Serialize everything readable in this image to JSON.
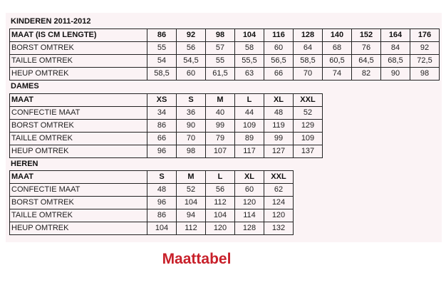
{
  "sections": [
    {
      "title": "KINDEREN 2011-2012",
      "header": [
        "MAAT (IS CM LENGTE)",
        "86",
        "92",
        "98",
        "104",
        "116",
        "128",
        "140",
        "152",
        "164",
        "176"
      ],
      "rows": [
        [
          "BORST OMTREK",
          "55",
          "56",
          "57",
          "58",
          "60",
          "64",
          "68",
          "76",
          "84",
          "92"
        ],
        [
          "TAILLE OMTREK",
          "54",
          "54,5",
          "55",
          "55,5",
          "56,5",
          "58,5",
          "60,5",
          "64,5",
          "68,5",
          "72,5"
        ],
        [
          "HEUP OMTREK",
          "58,5",
          "60",
          "61,5",
          "63",
          "66",
          "70",
          "74",
          "82",
          "90",
          "98"
        ]
      ]
    },
    {
      "title": "DAMES",
      "header": [
        "MAAT",
        "XS",
        "S",
        "M",
        "L",
        "XL",
        "XXL"
      ],
      "rows": [
        [
          "CONFECTIE MAAT",
          "34",
          "36",
          "40",
          "44",
          "48",
          "52"
        ],
        [
          "BORST OMTREK",
          "86",
          "90",
          "99",
          "109",
          "119",
          "129"
        ],
        [
          "TAILLE OMTREK",
          "66",
          "70",
          "79",
          "89",
          "99",
          "109"
        ],
        [
          "HEUP OMTREK",
          "96",
          "98",
          "107",
          "117",
          "127",
          "137"
        ]
      ]
    },
    {
      "title": "HEREN",
      "header": [
        "MAAT",
        "S",
        "M",
        "L",
        "XL",
        "XXL"
      ],
      "rows": [
        [
          "CONFECTIE MAAT",
          "48",
          "52",
          "56",
          "60",
          "62"
        ],
        [
          "BORST OMTREK",
          "96",
          "104",
          "112",
          "120",
          "124"
        ],
        [
          "TAILLE OMTREK",
          "86",
          "94",
          "104",
          "114",
          "120"
        ],
        [
          "HEUP OMTREK",
          "104",
          "112",
          "120",
          "128",
          "132"
        ]
      ]
    }
  ],
  "caption": "Maattabel",
  "colors": {
    "caption": "#c8202a",
    "background": "#fbf3f5"
  }
}
